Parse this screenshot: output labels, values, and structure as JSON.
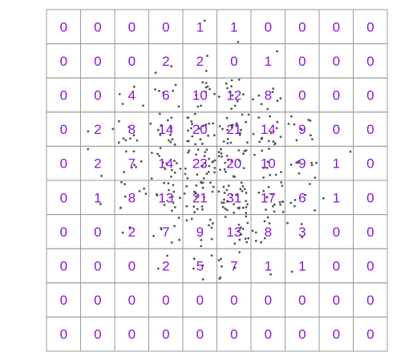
{
  "chart_data": {
    "type": "heatmap",
    "title": "",
    "xlabel": "",
    "ylabel": "",
    "grid": true,
    "rows": 10,
    "cols": 10,
    "counts": [
      [
        "0",
        "0",
        "0",
        "0",
        "1",
        "1",
        "0",
        "0",
        "0",
        "0"
      ],
      [
        "0",
        "0",
        "0",
        "2",
        "2",
        "0",
        "1",
        "0",
        "0",
        "0"
      ],
      [
        "0",
        "0",
        "4",
        "6",
        "10",
        "12",
        "8",
        "0",
        "0",
        "0"
      ],
      [
        "0",
        "2",
        "8",
        "14",
        "20",
        "21",
        "14",
        "9",
        "0",
        "0"
      ],
      [
        "0",
        "2",
        "7",
        "14",
        "23",
        "20",
        "10",
        "9",
        "1",
        "0"
      ],
      [
        "0",
        "1",
        "8",
        "13",
        "21",
        "31",
        "17",
        "6",
        "1",
        "0"
      ],
      [
        "0",
        "0",
        "2",
        "7",
        "9",
        "13",
        "8",
        "3",
        "0",
        "0"
      ],
      [
        "0",
        "0",
        "0",
        "2",
        "5",
        "7",
        "1",
        "1",
        "0",
        "0"
      ],
      [
        "0",
        "0",
        "0",
        "0",
        "0",
        "0",
        "0",
        "0",
        "0",
        "0"
      ],
      [
        "0",
        "0",
        "0",
        "0",
        "0",
        "0",
        "0",
        "0",
        "0",
        "0"
      ]
    ],
    "colors": {
      "grid_line": "#9a9a9a",
      "label": "#8a14d6",
      "point": "#555555"
    }
  }
}
